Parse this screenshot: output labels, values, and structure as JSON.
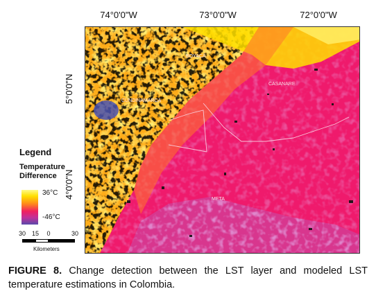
{
  "map": {
    "longitude_ticks": [
      "74°0'0\"W",
      "73°0'0\"W",
      "72°0'0\"W"
    ],
    "latitude_ticks": [
      "5°0'0\"N",
      "4°0'0\"N"
    ],
    "place_labels": [
      "BOYACÁ",
      "CUNDINAMARCA",
      "CASANARE",
      "META"
    ]
  },
  "legend": {
    "title": "Legend",
    "subtitle_line1": "Temperature",
    "subtitle_line2": "Difference",
    "max_label": "36°C",
    "min_label": "-46°C",
    "colors": [
      "#fffa8a",
      "#ffe000",
      "#ff8a1a",
      "#f02060",
      "#c0309a",
      "#5a4aaa"
    ]
  },
  "scalebar": {
    "ticks": [
      "30",
      "15",
      "0",
      "30"
    ],
    "units": "Kilometers"
  },
  "caption": {
    "label": "FIGURE 8.",
    "text": " Change detection between the LST layer and modeled LST temperature estimations in Colombia."
  }
}
